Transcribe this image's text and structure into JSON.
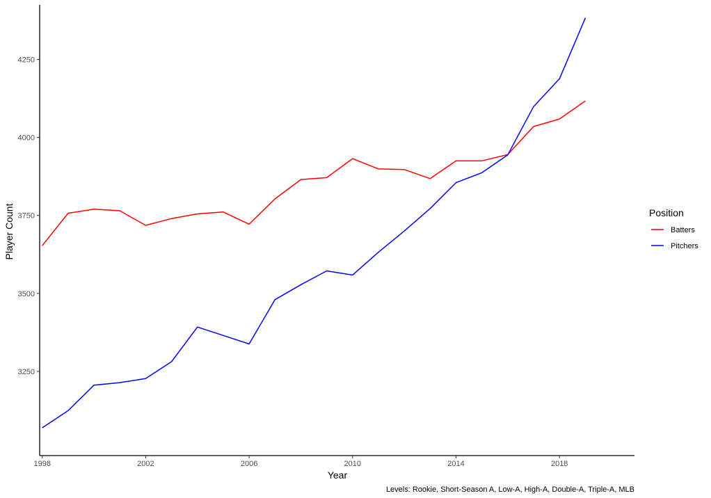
{
  "chart_data": {
    "type": "line",
    "title": "",
    "xlabel": "Year",
    "ylabel": "Player Count",
    "caption": "Levels: Rookie, Short-Season A, Low-A, High-A, Double-A, Triple-A, MLB",
    "xlim": [
      1997.9,
      2020.9
    ],
    "ylim": [
      2980,
      4425
    ],
    "x_ticks": [
      1998,
      2002,
      2006,
      2010,
      2014,
      2018
    ],
    "y_ticks": [
      3250,
      3500,
      3750,
      4000,
      4250
    ],
    "grid": false,
    "legend": {
      "title": "Position",
      "placement": "right"
    },
    "x": [
      1998,
      1999,
      2000,
      2001,
      2002,
      2003,
      2004,
      2005,
      2006,
      2007,
      2008,
      2009,
      2010,
      2011,
      2012,
      2013,
      2014,
      2015,
      2016,
      2017,
      2018,
      2019
    ],
    "series": [
      {
        "name": "Batters",
        "color": "#ff0000",
        "values": [
          3653,
          3757,
          3770,
          3765,
          3718,
          3740,
          3755,
          3761,
          3722,
          3803,
          3865,
          3871,
          3932,
          3899,
          3897,
          3868,
          3925,
          3925,
          3945,
          4035,
          4059,
          4117
        ]
      },
      {
        "name": "Pitchers",
        "color": "#0000ff",
        "values": [
          3069,
          3124,
          3206,
          3214,
          3227,
          3281,
          3392,
          3365,
          3338,
          3480,
          3528,
          3572,
          3559,
          3632,
          3700,
          3772,
          3855,
          3887,
          3944,
          4099,
          4188,
          4383
        ]
      }
    ]
  }
}
